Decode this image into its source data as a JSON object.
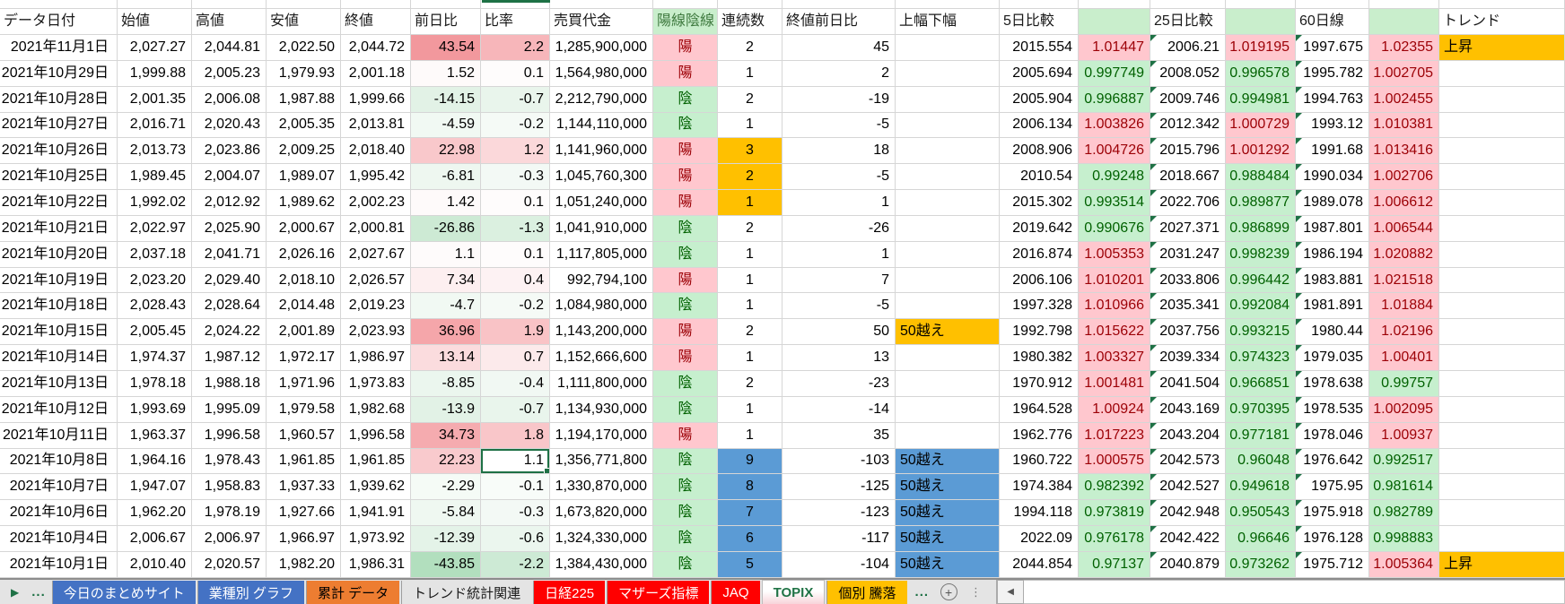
{
  "app": {
    "kind": "spreadsheet",
    "active_sheet": "TOPIX"
  },
  "colors": {
    "good_bg": "#C6EFCE",
    "good_fg": "#006100",
    "bad_bg": "#FFC7CE",
    "bad_fg": "#9C0006",
    "orange": "#FFC000",
    "blue": "#5B9BD5",
    "trend_orange": "#FFC000",
    "header_green_bg": "#C9EECC",
    "header_green_fg": "#3F7A3F",
    "selection_green": "#1E7145",
    "tab_blue": "#4472C4",
    "tab_orange": "#ED7D31",
    "tab_red": "#FF0000",
    "tab_amber": "#FFC000",
    "tab_active_fg": "#217346"
  },
  "selection": {
    "row_date": "2021年10月8日",
    "column": "ratio",
    "value": "1.1"
  },
  "table": {
    "columns": [
      {
        "key": "date",
        "label": "データ日付"
      },
      {
        "key": "open",
        "label": "始値"
      },
      {
        "key": "high",
        "label": "高値"
      },
      {
        "key": "low",
        "label": "安値"
      },
      {
        "key": "close",
        "label": "終値"
      },
      {
        "key": "prev_day_change",
        "label": "前日比"
      },
      {
        "key": "ratio",
        "label": "比率"
      },
      {
        "key": "trading_value",
        "label": "売買代金"
      },
      {
        "key": "candle",
        "label": "陽線陰線",
        "bg": "green",
        "fg": "green"
      },
      {
        "key": "streak",
        "label": "連続数"
      },
      {
        "key": "close_change",
        "label": "終値前日比"
      },
      {
        "key": "range_flag",
        "label": "上幅下幅"
      },
      {
        "key": "compare_5d",
        "label": "5日比較"
      },
      {
        "key": "ratio_5d",
        "label": "",
        "bg": "green"
      },
      {
        "key": "compare_25d",
        "label": "25日比較"
      },
      {
        "key": "ratio_25d",
        "label": "",
        "bg": "green"
      },
      {
        "key": "line_60d",
        "label": "60日線"
      },
      {
        "key": "ratio_60d",
        "label": "",
        "bg": "green"
      },
      {
        "key": "trend",
        "label": "トレンド"
      }
    ],
    "rows": [
      {
        "date": "2021年11月1日",
        "open": "2,027.27",
        "high": "2,044.81",
        "low": "2,022.50",
        "close": "2,044.72",
        "chg": "43.54",
        "chg_bg": "#f2989d",
        "pct": "2.2",
        "pct_bg": "#f7b6ba",
        "value": "1,285,900,000",
        "candle": "陽",
        "streak": "2",
        "streak_bg": "",
        "close_chg": "45",
        "flag": "",
        "flag_bg": "",
        "d5": "2015.554",
        "r5": "1.01447",
        "r5_s": "up",
        "d25": "2006.21",
        "r25": "1.019195",
        "r25_s": "up",
        "d60": "1997.675",
        "r60": "1.02355",
        "r60_s": "up",
        "trend": "上昇"
      },
      {
        "date": "2021年10月29日",
        "open": "1,999.88",
        "high": "2,005.23",
        "low": "1,979.93",
        "close": "2,001.18",
        "chg": "1.52",
        "chg_bg": "#fefafa",
        "pct": "0.1",
        "pct_bg": "#fefcfc",
        "value": "1,564,980,000",
        "candle": "陽",
        "streak": "1",
        "streak_bg": "",
        "close_chg": "2",
        "flag": "",
        "flag_bg": "",
        "d5": "2005.694",
        "r5": "0.997749",
        "r5_s": "down",
        "d25": "2008.052",
        "r25": "0.996578",
        "r25_s": "down",
        "d60": "1995.782",
        "r60": "1.002705",
        "r60_s": "up",
        "trend": ""
      },
      {
        "date": "2021年10月28日",
        "open": "2,001.35",
        "high": "2,006.08",
        "low": "1,987.88",
        "close": "1,999.66",
        "chg": "-14.15",
        "chg_bg": "#e2f2e6",
        "pct": "-0.7",
        "pct_bg": "#e9f5ec",
        "value": "2,212,790,000",
        "candle": "陰",
        "streak": "2",
        "streak_bg": "",
        "close_chg": "-19",
        "flag": "",
        "flag_bg": "",
        "d5": "2005.904",
        "r5": "0.996887",
        "r5_s": "down",
        "d25": "2009.746",
        "r25": "0.994981",
        "r25_s": "down",
        "d60": "1994.763",
        "r60": "1.002455",
        "r60_s": "up",
        "trend": ""
      },
      {
        "date": "2021年10月27日",
        "open": "2,016.71",
        "high": "2,020.43",
        "low": "2,005.35",
        "close": "2,013.81",
        "chg": "-4.59",
        "chg_bg": "#f1f9f3",
        "pct": "-0.2",
        "pct_bg": "#f5faf6",
        "value": "1,144,110,000",
        "candle": "陰",
        "streak": "1",
        "streak_bg": "",
        "close_chg": "-5",
        "flag": "",
        "flag_bg": "",
        "d5": "2006.134",
        "r5": "1.003826",
        "r5_s": "up",
        "d25": "2012.342",
        "r25": "1.000729",
        "r25_s": "up",
        "d60": "1993.12",
        "r60": "1.010381",
        "r60_s": "up",
        "trend": ""
      },
      {
        "date": "2021年10月26日",
        "open": "2,013.73",
        "high": "2,023.86",
        "low": "2,009.25",
        "close": "2,018.40",
        "chg": "22.98",
        "chg_bg": "#f9c8cb",
        "pct": "1.2",
        "pct_bg": "#fbd8da",
        "value": "1,141,960,000",
        "candle": "陽",
        "streak": "3",
        "streak_bg": "orange",
        "close_chg": "18",
        "flag": "",
        "flag_bg": "",
        "d5": "2008.906",
        "r5": "1.004726",
        "r5_s": "up",
        "d25": "2015.796",
        "r25": "1.001292",
        "r25_s": "up",
        "d60": "1991.68",
        "r60": "1.013416",
        "r60_s": "up",
        "trend": ""
      },
      {
        "date": "2021年10月25日",
        "open": "1,989.45",
        "high": "2,004.07",
        "low": "1,989.07",
        "close": "1,995.42",
        "chg": "-6.81",
        "chg_bg": "#eef7f0",
        "pct": "-0.3",
        "pct_bg": "#f3f9f5",
        "value": "1,045,760,300",
        "candle": "陽",
        "streak": "2",
        "streak_bg": "orange",
        "close_chg": "-5",
        "flag": "",
        "flag_bg": "",
        "d5": "2010.54",
        "r5": "0.99248",
        "r5_s": "down",
        "d25": "2018.667",
        "r25": "0.988484",
        "r25_s": "down",
        "d60": "1990.034",
        "r60": "1.002706",
        "r60_s": "up",
        "trend": ""
      },
      {
        "date": "2021年10月22日",
        "open": "1,992.02",
        "high": "2,012.92",
        "low": "1,989.62",
        "close": "2,002.23",
        "chg": "1.42",
        "chg_bg": "#fefafa",
        "pct": "0.1",
        "pct_bg": "#fefcfc",
        "value": "1,051,240,000",
        "candle": "陽",
        "streak": "1",
        "streak_bg": "orange",
        "close_chg": "1",
        "flag": "",
        "flag_bg": "",
        "d5": "2015.302",
        "r5": "0.993514",
        "r5_s": "down",
        "d25": "2022.706",
        "r25": "0.989877",
        "r25_s": "down",
        "d60": "1989.078",
        "r60": "1.006612",
        "r60_s": "up",
        "trend": ""
      },
      {
        "date": "2021年10月21日",
        "open": "2,022.97",
        "high": "2,025.90",
        "low": "2,000.67",
        "close": "2,000.81",
        "chg": "-26.86",
        "chg_bg": "#cdead4",
        "pct": "-1.3",
        "pct_bg": "#dbf0e0",
        "value": "1,041,910,000",
        "candle": "陰",
        "streak": "2",
        "streak_bg": "",
        "close_chg": "-26",
        "flag": "",
        "flag_bg": "",
        "d5": "2019.642",
        "r5": "0.990676",
        "r5_s": "down",
        "d25": "2027.371",
        "r25": "0.986899",
        "r25_s": "down",
        "d60": "1987.801",
        "r60": "1.006544",
        "r60_s": "up",
        "trend": ""
      },
      {
        "date": "2021年10月20日",
        "open": "2,037.18",
        "high": "2,041.71",
        "low": "2,026.16",
        "close": "2,027.67",
        "chg": "1.1",
        "chg_bg": "#fefbfb",
        "pct": "0.1",
        "pct_bg": "#fefcfc",
        "value": "1,117,805,000",
        "candle": "陰",
        "streak": "1",
        "streak_bg": "",
        "close_chg": "1",
        "flag": "",
        "flag_bg": "",
        "d5": "2016.874",
        "r5": "1.005353",
        "r5_s": "up",
        "d25": "2031.247",
        "r25": "0.998239",
        "r25_s": "down",
        "d60": "1986.194",
        "r60": "1.020882",
        "r60_s": "up",
        "trend": ""
      },
      {
        "date": "2021年10月19日",
        "open": "2,023.20",
        "high": "2,029.40",
        "low": "2,018.10",
        "close": "2,026.57",
        "chg": "7.34",
        "chg_bg": "#fdeff0",
        "pct": "0.4",
        "pct_bg": "#fdf2f3",
        "value": "992,794,100",
        "candle": "陽",
        "streak": "1",
        "streak_bg": "",
        "close_chg": "7",
        "flag": "",
        "flag_bg": "",
        "d5": "2006.106",
        "r5": "1.010201",
        "r5_s": "up",
        "d25": "2033.806",
        "r25": "0.996442",
        "r25_s": "down",
        "d60": "1983.881",
        "r60": "1.021518",
        "r60_s": "up",
        "trend": ""
      },
      {
        "date": "2021年10月18日",
        "open": "2,028.43",
        "high": "2,028.64",
        "low": "2,014.48",
        "close": "2,019.23",
        "chg": "-4.7",
        "chg_bg": "#f1f9f3",
        "pct": "-0.2",
        "pct_bg": "#f5faf6",
        "value": "1,084,980,000",
        "candle": "陰",
        "streak": "1",
        "streak_bg": "",
        "close_chg": "-5",
        "flag": "",
        "flag_bg": "",
        "d5": "1997.328",
        "r5": "1.010966",
        "r5_s": "up",
        "d25": "2035.341",
        "r25": "0.992084",
        "r25_s": "down",
        "d60": "1981.891",
        "r60": "1.01884",
        "r60_s": "up",
        "trend": ""
      },
      {
        "date": "2021年10月15日",
        "open": "2,005.45",
        "high": "2,024.22",
        "low": "2,001.89",
        "close": "2,023.93",
        "chg": "36.96",
        "chg_bg": "#f5a6aa",
        "pct": "1.9",
        "pct_bg": "#f9c3c6",
        "value": "1,143,200,000",
        "candle": "陽",
        "streak": "2",
        "streak_bg": "",
        "close_chg": "50",
        "flag": "50越え",
        "flag_bg": "orange",
        "d5": "1992.798",
        "r5": "1.015622",
        "r5_s": "up",
        "d25": "2037.756",
        "r25": "0.993215",
        "r25_s": "down",
        "d60": "1980.44",
        "r60": "1.02196",
        "r60_s": "up",
        "trend": ""
      },
      {
        "date": "2021年10月14日",
        "open": "1,974.37",
        "high": "1,987.12",
        "low": "1,972.17",
        "close": "1,986.97",
        "chg": "13.14",
        "chg_bg": "#fbdcde",
        "pct": "0.7",
        "pct_bg": "#fceaeb",
        "value": "1,152,666,600",
        "candle": "陽",
        "streak": "1",
        "streak_bg": "",
        "close_chg": "13",
        "flag": "",
        "flag_bg": "",
        "d5": "1980.382",
        "r5": "1.003327",
        "r5_s": "up",
        "d25": "2039.334",
        "r25": "0.974323",
        "r25_s": "down",
        "d60": "1979.035",
        "r60": "1.00401",
        "r60_s": "up",
        "trend": ""
      },
      {
        "date": "2021年10月13日",
        "open": "1,978.18",
        "high": "1,988.18",
        "low": "1,971.96",
        "close": "1,973.83",
        "chg": "-8.85",
        "chg_bg": "#ebf6ee",
        "pct": "-0.4",
        "pct_bg": "#f1f8f3",
        "value": "1,111,800,000",
        "candle": "陰",
        "streak": "2",
        "streak_bg": "",
        "close_chg": "-23",
        "flag": "",
        "flag_bg": "",
        "d5": "1970.912",
        "r5": "1.001481",
        "r5_s": "up",
        "d25": "2041.504",
        "r25": "0.966851",
        "r25_s": "down",
        "d60": "1978.638",
        "r60": "0.99757",
        "r60_s": "down",
        "trend": ""
      },
      {
        "date": "2021年10月12日",
        "open": "1,993.69",
        "high": "1,995.09",
        "low": "1,979.58",
        "close": "1,982.68",
        "chg": "-13.9",
        "chg_bg": "#e2f2e6",
        "pct": "-0.7",
        "pct_bg": "#e9f5ec",
        "value": "1,134,930,000",
        "candle": "陰",
        "streak": "1",
        "streak_bg": "",
        "close_chg": "-14",
        "flag": "",
        "flag_bg": "",
        "d5": "1964.528",
        "r5": "1.00924",
        "r5_s": "up",
        "d25": "2043.169",
        "r25": "0.970395",
        "r25_s": "down",
        "d60": "1978.535",
        "r60": "1.002095",
        "r60_s": "up",
        "trend": ""
      },
      {
        "date": "2021年10月11日",
        "open": "1,963.37",
        "high": "1,996.58",
        "low": "1,960.57",
        "close": "1,996.58",
        "chg": "34.73",
        "chg_bg": "#f5abaf",
        "pct": "1.8",
        "pct_bg": "#f9c6c9",
        "value": "1,194,170,000",
        "candle": "陽",
        "streak": "1",
        "streak_bg": "",
        "close_chg": "35",
        "flag": "",
        "flag_bg": "",
        "d5": "1962.776",
        "r5": "1.017223",
        "r5_s": "up",
        "d25": "2043.204",
        "r25": "0.977181",
        "r25_s": "down",
        "d60": "1978.046",
        "r60": "1.00937",
        "r60_s": "up",
        "trend": ""
      },
      {
        "date": "2021年10月8日",
        "open": "1,964.16",
        "high": "1,978.43",
        "low": "1,961.85",
        "close": "1,961.85",
        "chg": "22.23",
        "chg_bg": "#f9cacd",
        "pct": "1.1",
        "pct_bg": "#ffffff",
        "selected": true,
        "value": "1,356,771,800",
        "candle": "陰",
        "streak": "9",
        "streak_bg": "blue",
        "close_chg": "-103",
        "flag": "50越え",
        "flag_bg": "blue",
        "d5": "1960.722",
        "r5": "1.000575",
        "r5_s": "up",
        "d25": "2042.573",
        "r25": "0.96048",
        "r25_s": "down",
        "d60": "1976.642",
        "r60": "0.992517",
        "r60_s": "down",
        "trend": ""
      },
      {
        "date": "2021年10月7日",
        "open": "1,947.07",
        "high": "1,958.83",
        "low": "1,937.33",
        "close": "1,939.62",
        "chg": "-2.29",
        "chg_bg": "#f5fbf6",
        "pct": "-0.1",
        "pct_bg": "#f8fcf9",
        "value": "1,330,870,000",
        "candle": "陰",
        "streak": "8",
        "streak_bg": "blue",
        "close_chg": "-125",
        "flag": "50越え",
        "flag_bg": "blue",
        "d5": "1974.384",
        "r5": "0.982392",
        "r5_s": "down",
        "d25": "2042.527",
        "r25": "0.949618",
        "r25_s": "down",
        "d60": "1975.95",
        "r60": "0.981614",
        "r60_s": "down",
        "trend": ""
      },
      {
        "date": "2021年10月6日",
        "open": "1,962.20",
        "high": "1,978.19",
        "low": "1,927.66",
        "close": "1,941.91",
        "chg": "-5.84",
        "chg_bg": "#eff8f1",
        "pct": "-0.3",
        "pct_bg": "#f3f9f5",
        "value": "1,673,820,000",
        "candle": "陰",
        "streak": "7",
        "streak_bg": "blue",
        "close_chg": "-123",
        "flag": "50越え",
        "flag_bg": "blue",
        "d5": "1994.118",
        "r5": "0.973819",
        "r5_s": "down",
        "d25": "2042.948",
        "r25": "0.950543",
        "r25_s": "down",
        "d60": "1975.918",
        "r60": "0.982789",
        "r60_s": "down",
        "trend": ""
      },
      {
        "date": "2021年10月4日",
        "open": "2,006.67",
        "high": "2,006.97",
        "low": "1,966.97",
        "close": "1,973.92",
        "chg": "-12.39",
        "chg_bg": "#e4f3e8",
        "pct": "-0.6",
        "pct_bg": "#ebf6ee",
        "value": "1,324,330,000",
        "candle": "陰",
        "streak": "6",
        "streak_bg": "blue",
        "close_chg": "-117",
        "flag": "50越え",
        "flag_bg": "blue",
        "d5": "2022.09",
        "r5": "0.976178",
        "r5_s": "down",
        "d25": "2042.422",
        "r25": "0.96646",
        "r25_s": "down",
        "d60": "1976.128",
        "r60": "0.998883",
        "r60_s": "down",
        "trend": ""
      },
      {
        "date": "2021年10月1日",
        "open": "2,010.40",
        "high": "2,020.57",
        "low": "1,982.20",
        "close": "1,986.31",
        "chg": "-43.85",
        "chg_bg": "#b2dfbe",
        "pct": "-2.2",
        "pct_bg": "#cdead5",
        "value": "1,384,430,000",
        "candle": "陰",
        "streak": "5",
        "streak_bg": "blue",
        "close_chg": "-104",
        "flag": "50越え",
        "flag_bg": "blue",
        "d5": "2044.854",
        "r5": "0.97137",
        "r5_s": "down",
        "d25": "2040.879",
        "r25": "0.973262",
        "r25_s": "down",
        "d60": "1975.712",
        "r60": "1.005364",
        "r60_s": "up",
        "trend": "上昇"
      }
    ]
  },
  "tabbar": {
    "prev_glyph": "▶",
    "left_ellipsis": "...",
    "right_ellipsis": "...",
    "add_glyph": "+",
    "menu_glyph": "⋮",
    "scroll_left_glyph": "◀",
    "tabs": [
      {
        "key": "summary-site",
        "label": "今日のまとめサイト",
        "style": "blue"
      },
      {
        "key": "sector-graph",
        "label": "業種別 グラフ",
        "style": "blue"
      },
      {
        "key": "cumulative-data",
        "label": "累計 データ",
        "style": "orange"
      },
      {
        "key": "trend-stats",
        "label": "トレンド統計関連",
        "style": "plain"
      },
      {
        "key": "nikkei225",
        "label": "日経225",
        "style": "red"
      },
      {
        "key": "mothers-index",
        "label": "マザーズ指標",
        "style": "red"
      },
      {
        "key": "jaq",
        "label": "JAQ",
        "style": "red"
      },
      {
        "key": "topix",
        "label": "TOPIX",
        "style": "active"
      },
      {
        "key": "individual-updown",
        "label": "個別 騰落",
        "style": "amber"
      }
    ]
  }
}
